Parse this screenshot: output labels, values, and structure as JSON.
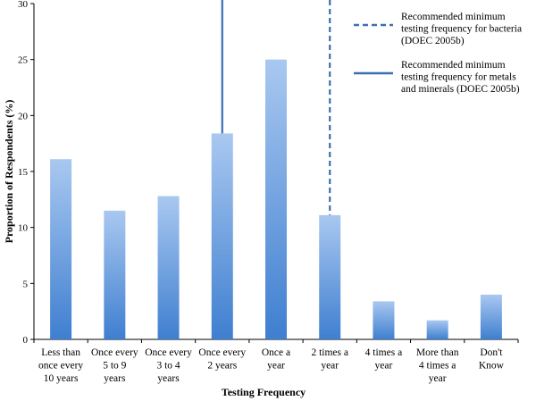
{
  "chart_data": {
    "type": "bar",
    "xlabel": "Testing Frequency",
    "ylabel": "Proportion of Respondents (%)",
    "ylim": [
      0,
      30
    ],
    "yticks": [
      0,
      5,
      10,
      15,
      20,
      25,
      30
    ],
    "grid": false,
    "categories": [
      [
        "Less than",
        "once every",
        "10 years"
      ],
      [
        "Once every",
        "5 to 9",
        "years"
      ],
      [
        "Once every",
        "3 to 4",
        "years"
      ],
      [
        "Once every",
        "2 years"
      ],
      [
        "Once a",
        "year"
      ],
      [
        "2 times a",
        "year"
      ],
      [
        "4 times a",
        "year"
      ],
      [
        "More than",
        "4 times a",
        "year"
      ],
      [
        "Don't",
        "Know"
      ]
    ],
    "values": [
      16.1,
      11.5,
      12.8,
      18.4,
      25.0,
      11.1,
      3.4,
      1.7,
      4.0
    ],
    "bar_color_top": "#a9c8f0",
    "bar_color_bottom": "#3f7fd0",
    "reference_lines": [
      {
        "style": "dashed",
        "category_index": 5,
        "label": [
          "Recommended minimum",
          "testing frequency for bacteria",
          "(DOEC 2005b)"
        ],
        "color": "#3d6fb0"
      },
      {
        "style": "solid",
        "category_index": 3,
        "label": [
          "Recommended minimum",
          "testing frequency for metals",
          "and minerals (DOEC 2005b)"
        ],
        "color": "#3d6fb0"
      }
    ],
    "legend_position": "top-right"
  }
}
